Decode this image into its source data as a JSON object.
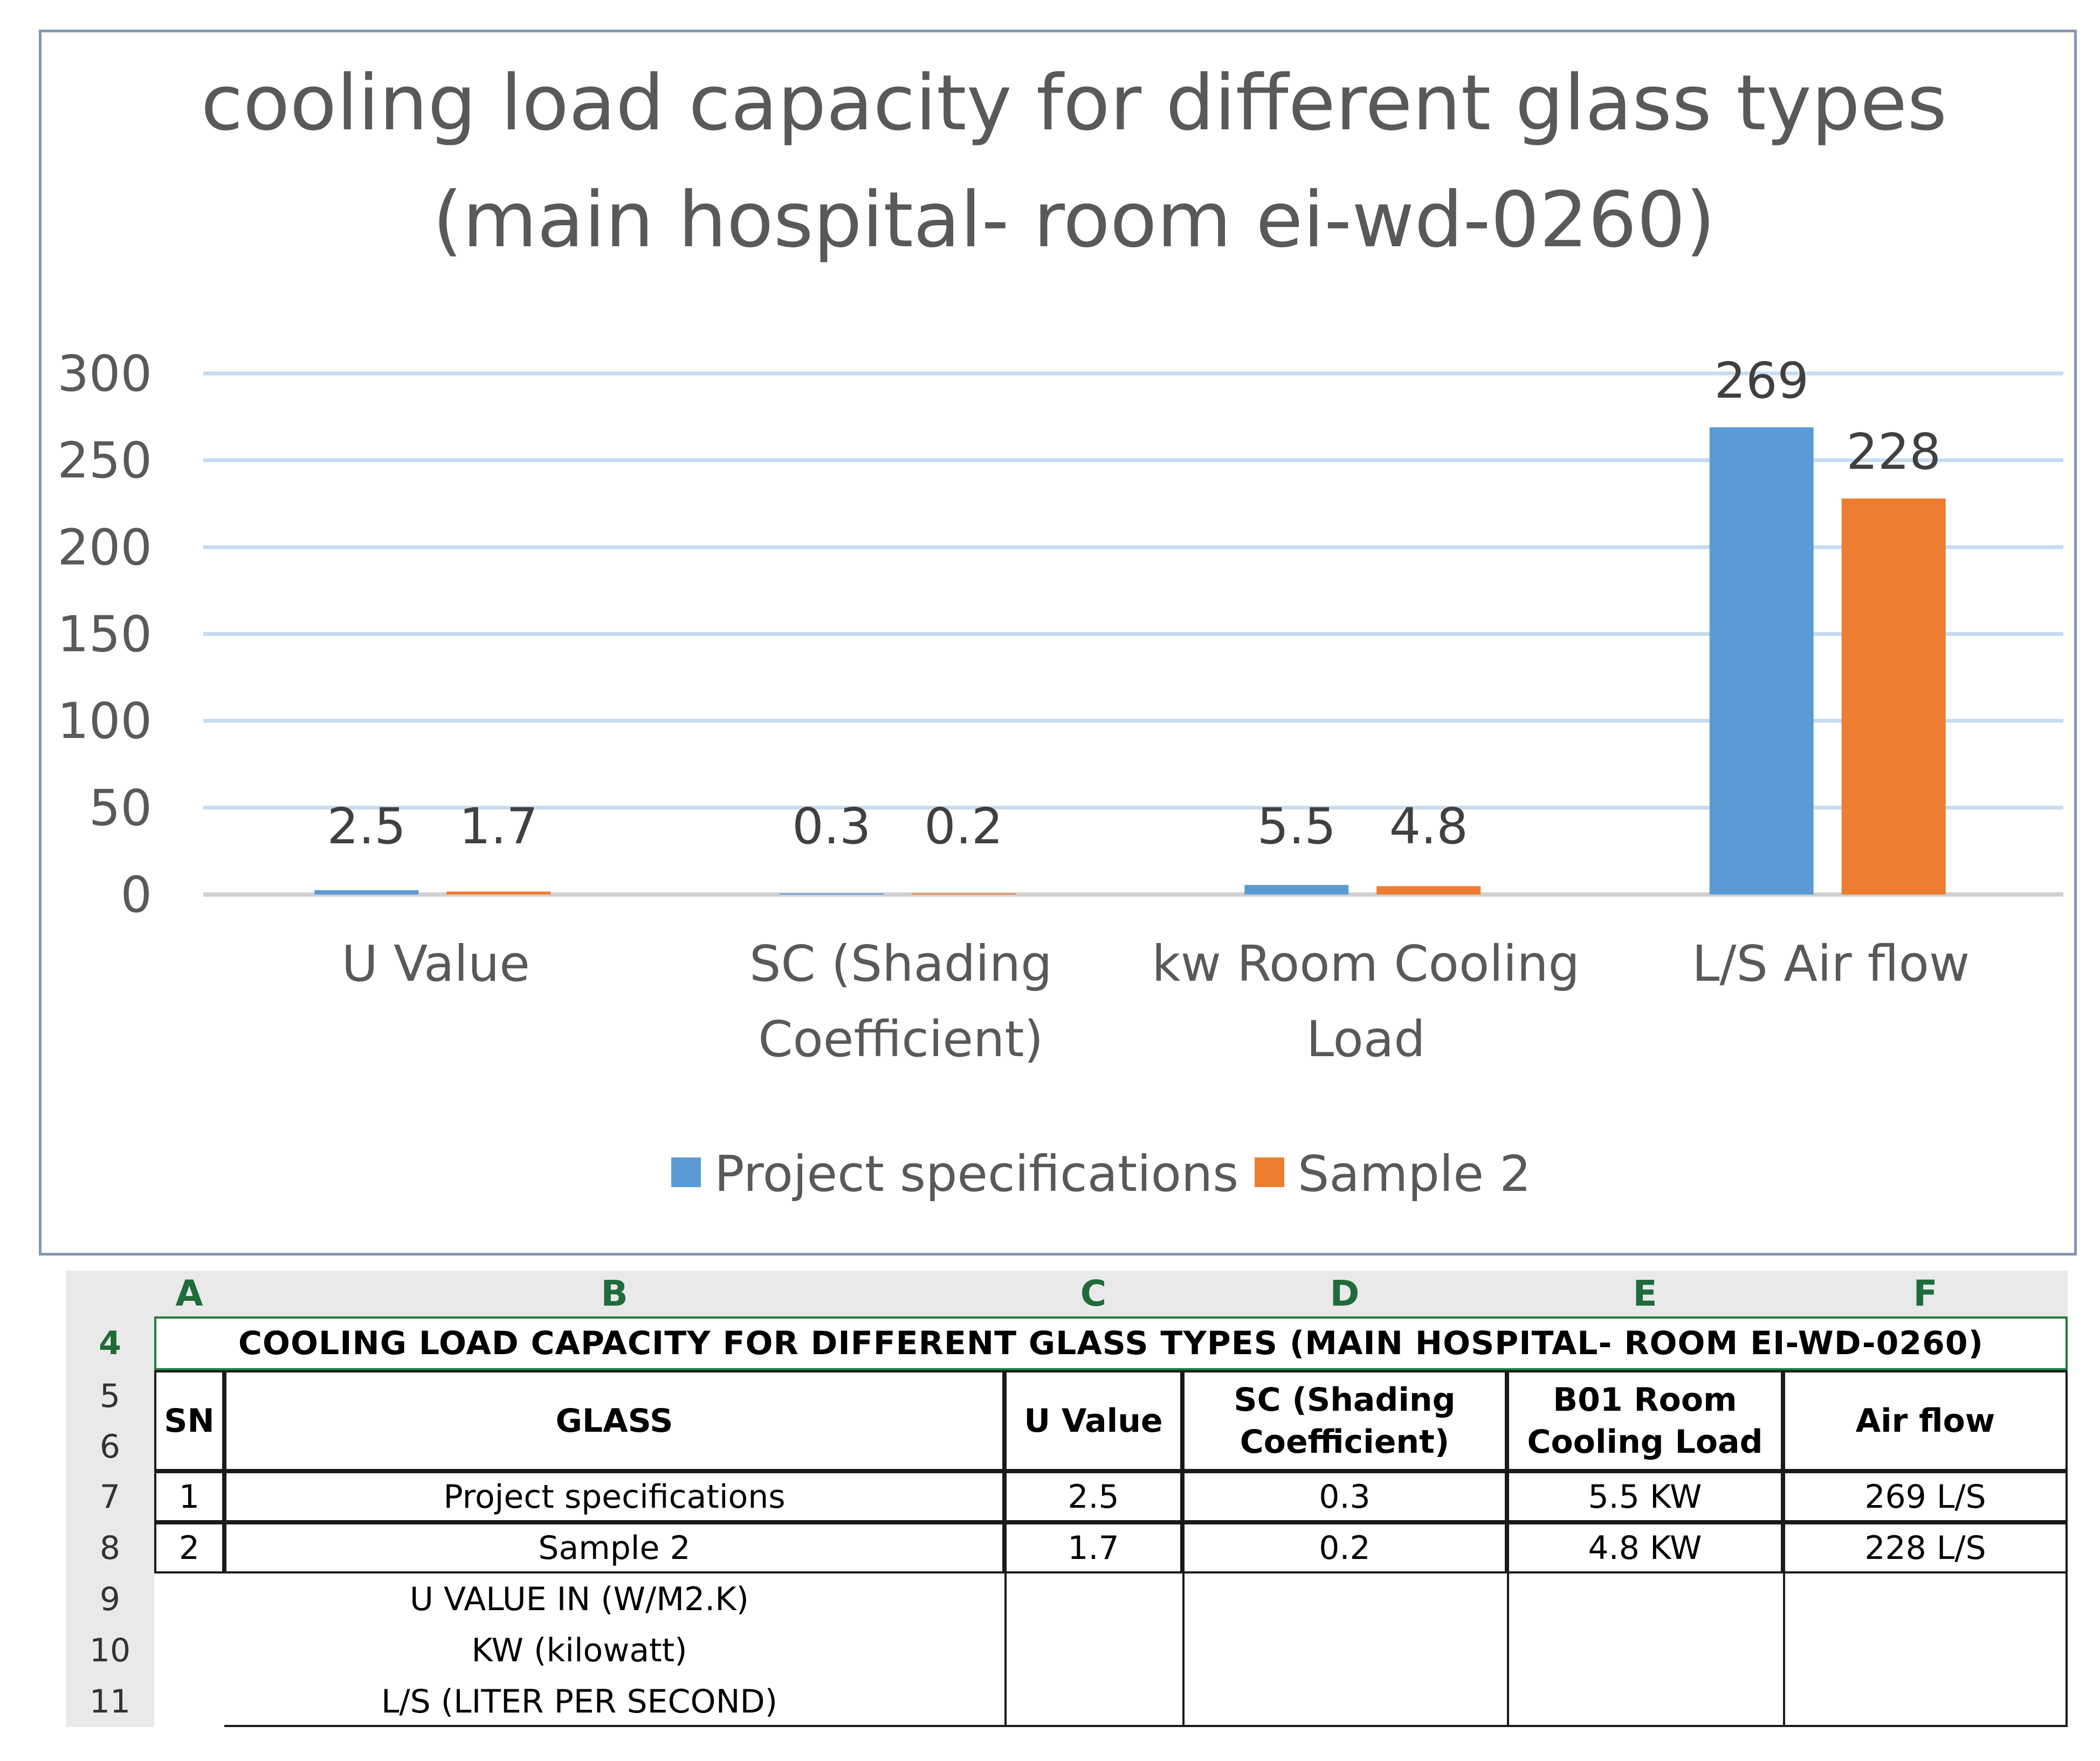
{
  "chart_data": {
    "type": "bar",
    "title": [
      "cooling load capacity for different glass types",
      "(main hospital- room ei-wd-0260)"
    ],
    "categories": [
      [
        "U Value"
      ],
      [
        "SC (Shading",
        "Coefficient)"
      ],
      [
        "kw Room Cooling",
        "Load"
      ],
      [
        "L/S Air flow"
      ]
    ],
    "series": [
      {
        "name": "Project specifications",
        "values": [
          2.5,
          0.3,
          5.5,
          269
        ],
        "color": "#5b9bd5"
      },
      {
        "name": "Sample 2",
        "values": [
          1.7,
          0.2,
          4.8,
          228
        ],
        "color": "#ed7d31"
      }
    ],
    "ylim": [
      0,
      300
    ],
    "yticks": [
      0,
      50,
      100,
      150,
      200,
      250,
      300
    ],
    "grid": true,
    "legend": "bottom"
  },
  "sheet": {
    "columns": [
      "A",
      "B",
      "C",
      "D",
      "E",
      "F"
    ],
    "row_numbers": [
      "4",
      "5",
      "6",
      "7",
      "8",
      "9",
      "10",
      "11"
    ],
    "title": "COOLING LOAD CAPACITY FOR DIFFERENT GLASS TYPES (MAIN HOSPITAL- ROOM EI-WD-0260)",
    "headers": [
      "SN",
      "GLASS",
      "U Value",
      "SC (Shading Coefficient)",
      "B01 Room Cooling Load",
      "Air flow"
    ],
    "rows": [
      [
        "1",
        "Project specifications",
        "2.5",
        "0.3",
        "5.5 KW",
        "269 L/S"
      ],
      [
        "2",
        "Sample 2",
        "1.7",
        "0.2",
        "4.8 KW",
        "228 L/S"
      ]
    ],
    "notes": [
      "U VALUE IN (W/M2.K)",
      "KW (kilowatt)",
      "L/S (LITER PER SECOND)"
    ]
  }
}
